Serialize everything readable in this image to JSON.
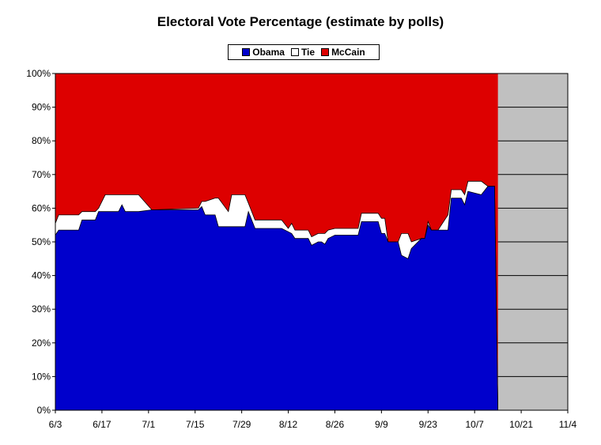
{
  "chart_data": {
    "type": "area",
    "title": "Electoral Vote Percentage (estimate by polls)",
    "stacked": true,
    "legend": {
      "placement": "top-center"
    },
    "x_ticks": [
      "6/3",
      "6/17",
      "7/1",
      "7/15",
      "7/29",
      "8/12",
      "8/26",
      "9/9",
      "9/23",
      "10/7",
      "10/21",
      "11/4"
    ],
    "y_ticks": [
      "0%",
      "10%",
      "20%",
      "30%",
      "40%",
      "50%",
      "60%",
      "70%",
      "80%",
      "90%",
      "100%"
    ],
    "ylim": [
      0,
      100
    ],
    "xlim": [
      "2008-06-03",
      "2008-11-04"
    ],
    "future_shade_start": "2008-10-14",
    "colors": {
      "Obama": "#0000cc",
      "Tie": "#ffffff",
      "McCain": "#dd0000",
      "future": "#c0c0c0"
    },
    "series": [
      {
        "name": "Obama",
        "color": "#0000cc"
      },
      {
        "name": "Tie",
        "color": "#ffffff"
      },
      {
        "name": "McCain",
        "color": "#dd0000"
      }
    ],
    "x": [
      "2008-06-03",
      "2008-06-04",
      "2008-06-10",
      "2008-06-11",
      "2008-06-15",
      "2008-06-16",
      "2008-06-18",
      "2008-06-22",
      "2008-06-23",
      "2008-06-24",
      "2008-06-28",
      "2008-07-02",
      "2008-07-16",
      "2008-07-17",
      "2008-07-18",
      "2008-07-21",
      "2008-07-22",
      "2008-07-25",
      "2008-07-26",
      "2008-07-30",
      "2008-07-31",
      "2008-08-02",
      "2008-08-10",
      "2008-08-12",
      "2008-08-13",
      "2008-08-14",
      "2008-08-18",
      "2008-08-19",
      "2008-08-21",
      "2008-08-22",
      "2008-08-23",
      "2008-08-24",
      "2008-08-26",
      "2008-09-02",
      "2008-09-03",
      "2008-09-08",
      "2008-09-09",
      "2008-09-10",
      "2008-09-11",
      "2008-09-14",
      "2008-09-15",
      "2008-09-17",
      "2008-09-18",
      "2008-09-21",
      "2008-09-22",
      "2008-09-23",
      "2008-09-24",
      "2008-09-26",
      "2008-09-29",
      "2008-09-30",
      "2008-10-03",
      "2008-10-04",
      "2008-10-05",
      "2008-10-09",
      "2008-10-11",
      "2008-10-13",
      "2008-10-14",
      "2008-10-15"
    ],
    "obama": [
      52,
      53.5,
      53.5,
      56.5,
      56.5,
      59,
      59,
      59,
      61,
      59,
      59,
      59.5,
      59.5,
      60.5,
      58,
      58,
      54.5,
      54.5,
      54.5,
      54.5,
      59,
      54,
      54,
      53,
      52.5,
      51,
      51,
      49,
      50,
      50,
      49.3,
      51,
      52,
      52,
      56,
      56,
      52.5,
      52.5,
      50,
      50,
      46,
      45,
      48,
      51,
      51,
      55,
      53.5,
      53.5,
      53.5,
      63,
      63,
      61,
      65,
      64,
      66.5,
      66.5,
      0,
      0
    ],
    "tie_top": [
      55.5,
      58,
      58,
      59,
      59,
      60,
      64,
      64,
      64,
      64,
      64,
      59.5,
      60,
      62,
      62,
      63,
      63,
      59,
      64,
      64,
      61.5,
      56.5,
      56.5,
      54,
      55.5,
      53.5,
      53.5,
      51.5,
      52.5,
      52.5,
      52.5,
      53.5,
      54,
      54,
      58.5,
      58.5,
      57,
      57,
      50,
      50,
      52.5,
      52.5,
      50,
      51,
      51,
      56,
      53.5,
      53.5,
      58,
      65.5,
      65.5,
      64,
      68,
      68,
      66.5,
      66.5,
      0,
      0
    ]
  }
}
